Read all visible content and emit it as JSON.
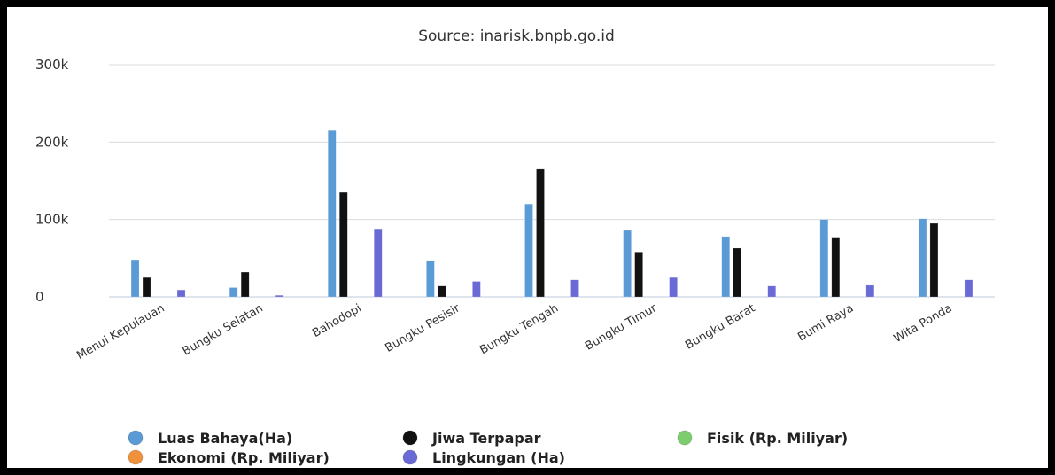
{
  "chart_data": {
    "type": "bar",
    "title": "Source: inarisk.bnpb.go.id",
    "xlabel": "",
    "ylabel": "",
    "ylim": [
      0,
      300000
    ],
    "yticks": [
      {
        "value": 0,
        "label": "0"
      },
      {
        "value": 100000,
        "label": "100k"
      },
      {
        "value": 200000,
        "label": "200k"
      },
      {
        "value": 300000,
        "label": "300k"
      }
    ],
    "grid": true,
    "legend_position": "bottom",
    "categories": [
      "Menui Kepulauan",
      "Bungku Selatan",
      "Bahodopi",
      "Bungku Pesisir",
      "Bungku Tengah",
      "Bungku Timur",
      "Bungku Barat",
      "Bumi Raya",
      "Wita Ponda"
    ],
    "series": [
      {
        "name": "Luas Bahaya(Ha)",
        "color": "#5b9bd5",
        "values": [
          48000,
          12000,
          215000,
          47000,
          120000,
          86000,
          78000,
          100000,
          101000
        ]
      },
      {
        "name": "Jiwa Terpapar",
        "color": "#111111",
        "values": [
          25000,
          32000,
          135000,
          14000,
          165000,
          58000,
          63000,
          76000,
          95000
        ]
      },
      {
        "name": "Fisik (Rp. Miliyar)",
        "color": "#7ccd6e",
        "values": [
          0,
          0,
          0,
          0,
          0,
          0,
          0,
          0,
          0
        ]
      },
      {
        "name": "Ekonomi (Rp. Miliyar)",
        "color": "#f0913c",
        "values": [
          0,
          0,
          0,
          0,
          0,
          0,
          0,
          0,
          0
        ]
      },
      {
        "name": "Lingkungan (Ha)",
        "color": "#6a6ad6",
        "values": [
          9000,
          2000,
          88000,
          20000,
          22000,
          25000,
          14000,
          15000,
          22000
        ]
      }
    ]
  }
}
